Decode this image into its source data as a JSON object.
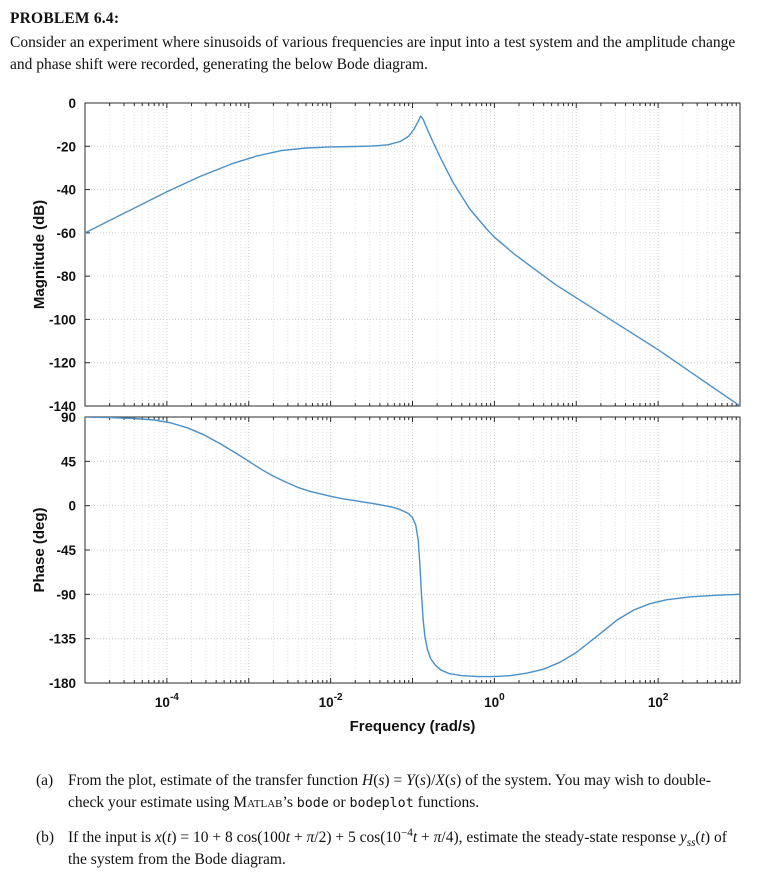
{
  "doc": {
    "title": "PROBLEM 6.4:",
    "intro": "Consider an experiment where sinusoids of various frequencies are input into a test system and the amplitude change and phase shift were recorded, generating the below Bode diagram.",
    "parts": [
      {
        "label": "(a)",
        "segments": [
          {
            "t": "From the plot, estimate of the transfer function ",
            "s": "rm"
          },
          {
            "t": "H",
            "s": "it"
          },
          {
            "t": "(",
            "s": "rm"
          },
          {
            "t": "s",
            "s": "it"
          },
          {
            "t": ") = ",
            "s": "rm"
          },
          {
            "t": "Y",
            "s": "it"
          },
          {
            "t": "(",
            "s": "rm"
          },
          {
            "t": "s",
            "s": "it"
          },
          {
            "t": ")/",
            "s": "rm"
          },
          {
            "t": "X",
            "s": "it"
          },
          {
            "t": "(",
            "s": "rm"
          },
          {
            "t": "s",
            "s": "it"
          },
          {
            "t": ") of the system. You may wish to double-check your estimate using ",
            "s": "rm"
          },
          {
            "t": "Matlab",
            "s": "sc"
          },
          {
            "t": "’s ",
            "s": "rm"
          },
          {
            "t": "bode",
            "s": "mono"
          },
          {
            "t": " or ",
            "s": "rm"
          },
          {
            "t": "bodeplot",
            "s": "mono"
          },
          {
            "t": " functions.",
            "s": "rm"
          }
        ]
      },
      {
        "label": "(b)",
        "segments": [
          {
            "t": "If the input is ",
            "s": "rm"
          },
          {
            "t": "x",
            "s": "it"
          },
          {
            "t": "(",
            "s": "rm"
          },
          {
            "t": "t",
            "s": "it"
          },
          {
            "t": ") = 10 + 8 cos(100",
            "s": "rm"
          },
          {
            "t": "t",
            "s": "it"
          },
          {
            "t": " + ",
            "s": "rm"
          },
          {
            "t": "π",
            "s": "it"
          },
          {
            "t": "/2) + 5 cos(10",
            "s": "rm"
          },
          {
            "t": "−4",
            "s": "sup"
          },
          {
            "t": "t",
            "s": "it"
          },
          {
            "t": " + ",
            "s": "rm"
          },
          {
            "t": "π",
            "s": "it"
          },
          {
            "t": "/4), estimate the steady-state response ",
            "s": "rm"
          },
          {
            "t": "y",
            "s": "it"
          },
          {
            "t": "ss",
            "s": "sub"
          },
          {
            "t": "(",
            "s": "rm"
          },
          {
            "t": "t",
            "s": "it"
          },
          {
            "t": ") of the system from the Bode diagram.",
            "s": "rm"
          }
        ]
      }
    ]
  },
  "chart_data": {
    "type": "line",
    "xlabel": "Frequency  (rad/s)",
    "x_scale": "log",
    "x_range": {
      "min_exp": -5,
      "max_exp": 3
    },
    "x_tick_exps": [
      -4,
      -2,
      0,
      2
    ],
    "grid": true,
    "line_color": "#4a90c8",
    "subplots": [
      {
        "name": "magnitude",
        "ylabel": "Magnitude (dB)",
        "ylim": [
          -140,
          0
        ],
        "yticks": [
          0,
          -20,
          -40,
          -60,
          -80,
          -100,
          -120,
          -140
        ],
        "series": [
          {
            "name": "magnitude_dB",
            "points": [
              [
                -5,
                -60
              ],
              [
                -4.5,
                -50.5
              ],
              [
                -4,
                -41
              ],
              [
                -3.6,
                -34
              ],
              [
                -3.2,
                -28
              ],
              [
                -2.9,
                -24.5
              ],
              [
                -2.6,
                -22
              ],
              [
                -2.3,
                -20.8
              ],
              [
                -2,
                -20.3
              ],
              [
                -1.7,
                -20.1
              ],
              [
                -1.5,
                -19.9
              ],
              [
                -1.3,
                -19.3
              ],
              [
                -1.15,
                -17.8
              ],
              [
                -1.05,
                -15.5
              ],
              [
                -0.98,
                -12
              ],
              [
                -0.93,
                -8.5
              ],
              [
                -0.9,
                -6
              ],
              [
                -0.87,
                -7.5
              ],
              [
                -0.82,
                -12
              ],
              [
                -0.75,
                -18
              ],
              [
                -0.65,
                -26
              ],
              [
                -0.5,
                -37
              ],
              [
                -0.3,
                -49
              ],
              [
                -0.1,
                -58
              ],
              [
                0,
                -62
              ],
              [
                0.25,
                -70
              ],
              [
                0.5,
                -77
              ],
              [
                0.75,
                -84
              ],
              [
                1,
                -90
              ],
              [
                1.5,
                -102
              ],
              [
                2,
                -114
              ],
              [
                2.5,
                -127
              ],
              [
                3,
                -140
              ]
            ]
          }
        ]
      },
      {
        "name": "phase",
        "ylabel": "Phase (deg)",
        "ylim": [
          -180,
          90
        ],
        "yticks": [
          90,
          45,
          0,
          -45,
          -90,
          -135,
          -180
        ],
        "series": [
          {
            "name": "phase_deg",
            "points": [
              [
                -5,
                90
              ],
              [
                -4.7,
                89.5
              ],
              [
                -4.4,
                88.5
              ],
              [
                -4.15,
                87
              ],
              [
                -3.95,
                84
              ],
              [
                -3.75,
                79
              ],
              [
                -3.55,
                72
              ],
              [
                -3.35,
                63
              ],
              [
                -3.15,
                53
              ],
              [
                -3,
                45
              ],
              [
                -2.85,
                37
              ],
              [
                -2.7,
                30
              ],
              [
                -2.55,
                24
              ],
              [
                -2.4,
                18.5
              ],
              [
                -2.25,
                14.5
              ],
              [
                -2.1,
                11.5
              ],
              [
                -2,
                9.5
              ],
              [
                -1.85,
                7
              ],
              [
                -1.7,
                5
              ],
              [
                -1.55,
                3
              ],
              [
                -1.4,
                1
              ],
              [
                -1.25,
                -1.5
              ],
              [
                -1.15,
                -4
              ],
              [
                -1.05,
                -8
              ],
              [
                -1,
                -12
              ],
              [
                -0.96,
                -20
              ],
              [
                -0.93,
                -35
              ],
              [
                -0.91,
                -60
              ],
              [
                -0.89,
                -90
              ],
              [
                -0.87,
                -115
              ],
              [
                -0.85,
                -132
              ],
              [
                -0.82,
                -145
              ],
              [
                -0.78,
                -155
              ],
              [
                -0.72,
                -162
              ],
              [
                -0.65,
                -167
              ],
              [
                -0.55,
                -170.5
              ],
              [
                -0.4,
                -172.5
              ],
              [
                -0.2,
                -173.5
              ],
              [
                0,
                -173.5
              ],
              [
                0.2,
                -172.5
              ],
              [
                0.4,
                -170
              ],
              [
                0.6,
                -166
              ],
              [
                0.8,
                -159
              ],
              [
                1,
                -149
              ],
              [
                1.2,
                -136
              ],
              [
                1.35,
                -126
              ],
              [
                1.5,
                -116
              ],
              [
                1.7,
                -106
              ],
              [
                1.9,
                -99.5
              ],
              [
                2.1,
                -95.5
              ],
              [
                2.4,
                -92.5
              ],
              [
                2.7,
                -91
              ],
              [
                3,
                -90
              ]
            ]
          }
        ]
      }
    ]
  }
}
